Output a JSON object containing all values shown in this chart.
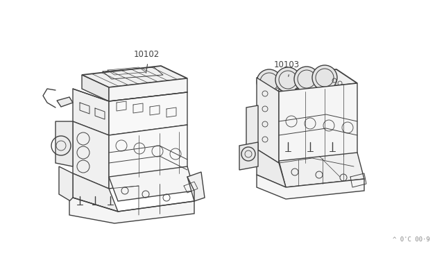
{
  "bg_color": "#FFFFFF",
  "line_color": "#404040",
  "label_color": "#404040",
  "watermark_color": "#888888",
  "label_10102": "10102",
  "label_10103": "10103",
  "watermark": "^ 0'C 00·9",
  "lw": 1.0,
  "fig_width": 6.4,
  "fig_height": 3.72,
  "dpi": 100
}
